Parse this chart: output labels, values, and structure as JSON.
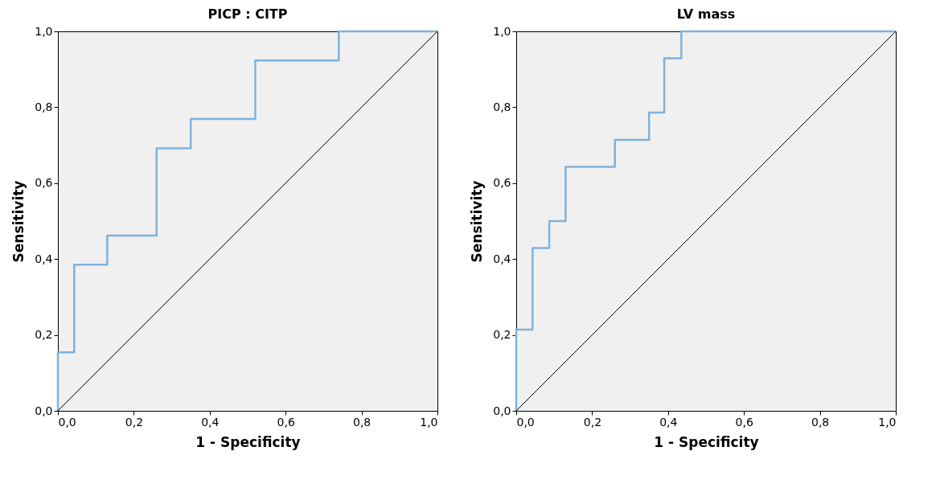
{
  "chart_data": [
    {
      "type": "step",
      "title": "PICP : CITP",
      "xlabel": "1 - Specificity",
      "ylabel": "Sensitivity",
      "xlim": [
        0,
        1
      ],
      "ylim": [
        0,
        1
      ],
      "xticks": [
        {
          "value": 0,
          "label": "0,0"
        },
        {
          "value": 0.2,
          "label": "0,2"
        },
        {
          "value": 0.4,
          "label": "0,4"
        },
        {
          "value": 0.6,
          "label": "0,6"
        },
        {
          "value": 0.8,
          "label": "0,8"
        },
        {
          "value": 1,
          "label": "1,0"
        }
      ],
      "yticks": [
        {
          "value": 0,
          "label": "0,0"
        },
        {
          "value": 0.2,
          "label": "0,2"
        },
        {
          "value": 0.4,
          "label": "0,4"
        },
        {
          "value": 0.6,
          "label": "0,6"
        },
        {
          "value": 0.8,
          "label": "0,8"
        },
        {
          "value": 1,
          "label": "1,0"
        }
      ],
      "grid": false,
      "series": [
        {
          "color": "#7fb2dc",
          "x": [
            0,
            0,
            0.043,
            0.13,
            0.26,
            0.35,
            0.52,
            0.74,
            1
          ],
          "values": [
            0,
            0.154,
            0.385,
            0.462,
            0.692,
            0.769,
            0.923,
            1,
            1
          ]
        },
        {
          "type": "line",
          "color": "#000000",
          "x": [
            0,
            1
          ],
          "values": [
            0,
            1
          ]
        }
      ]
    },
    {
      "type": "step",
      "title": "LV mass",
      "xlabel": "1 - Specificity",
      "ylabel": "Sensitivity",
      "xlim": [
        0,
        1
      ],
      "ylim": [
        0,
        1
      ],
      "xticks": [
        {
          "value": 0,
          "label": "0,0"
        },
        {
          "value": 0.2,
          "label": "0,2"
        },
        {
          "value": 0.4,
          "label": "0,4"
        },
        {
          "value": 0.6,
          "label": "0,6"
        },
        {
          "value": 0.8,
          "label": "0,8"
        },
        {
          "value": 1,
          "label": "1,0"
        }
      ],
      "yticks": [
        {
          "value": 0,
          "label": "0,0"
        },
        {
          "value": 0.2,
          "label": "0,2"
        },
        {
          "value": 0.4,
          "label": "0,4"
        },
        {
          "value": 0.6,
          "label": "0,6"
        },
        {
          "value": 0.8,
          "label": "0,8"
        },
        {
          "value": 1,
          "label": "1,0"
        }
      ],
      "grid": false,
      "series": [
        {
          "color": "#7fb2dc",
          "x": [
            0,
            0,
            0.043,
            0.087,
            0.13,
            0.26,
            0.35,
            0.39,
            0.435,
            1
          ],
          "values": [
            0,
            0.214,
            0.429,
            0.5,
            0.643,
            0.714,
            0.786,
            0.929,
            1,
            1
          ]
        },
        {
          "type": "line",
          "color": "#000000",
          "x": [
            0,
            1
          ],
          "values": [
            0,
            1
          ]
        }
      ]
    }
  ]
}
